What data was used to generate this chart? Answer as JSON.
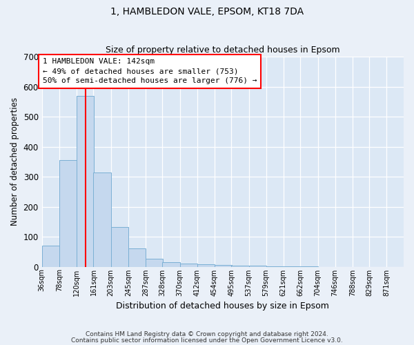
{
  "title": "1, HAMBLEDON VALE, EPSOM, KT18 7DA",
  "subtitle": "Size of property relative to detached houses in Epsom",
  "xlabel": "Distribution of detached houses by size in Epsom",
  "ylabel": "Number of detached properties",
  "bar_color": "#c5d8ee",
  "bar_edge_color": "#7aafd4",
  "bg_color": "#dce8f5",
  "fig_bg_color": "#eaf0f8",
  "grid_color": "#ffffff",
  "red_line_x": 142,
  "annotation_line1": "1 HAMBLEDON VALE: 142sqm",
  "annotation_line2": "← 49% of detached houses are smaller (753)",
  "annotation_line3": "50% of semi-detached houses are larger (776) →",
  "bin_edges": [
    36,
    78,
    120,
    161,
    203,
    245,
    287,
    328,
    370,
    412,
    454,
    495,
    537,
    579,
    621,
    662,
    704,
    746,
    788,
    829,
    871,
    912
  ],
  "bin_labels": [
    "36sqm",
    "78sqm",
    "120sqm",
    "161sqm",
    "203sqm",
    "245sqm",
    "287sqm",
    "328sqm",
    "370sqm",
    "412sqm",
    "454sqm",
    "495sqm",
    "537sqm",
    "579sqm",
    "621sqm",
    "662sqm",
    "704sqm",
    "746sqm",
    "788sqm",
    "829sqm",
    "871sqm"
  ],
  "counts": [
    70,
    355,
    568,
    315,
    133,
    60,
    27,
    14,
    10,
    8,
    5,
    4,
    3,
    2,
    1,
    1,
    0,
    0,
    0,
    0,
    0
  ],
  "ylim": [
    0,
    700
  ],
  "yticks": [
    0,
    100,
    200,
    300,
    400,
    500,
    600,
    700
  ],
  "footer_line1": "Contains HM Land Registry data © Crown copyright and database right 2024.",
  "footer_line2": "Contains public sector information licensed under the Open Government Licence v3.0."
}
